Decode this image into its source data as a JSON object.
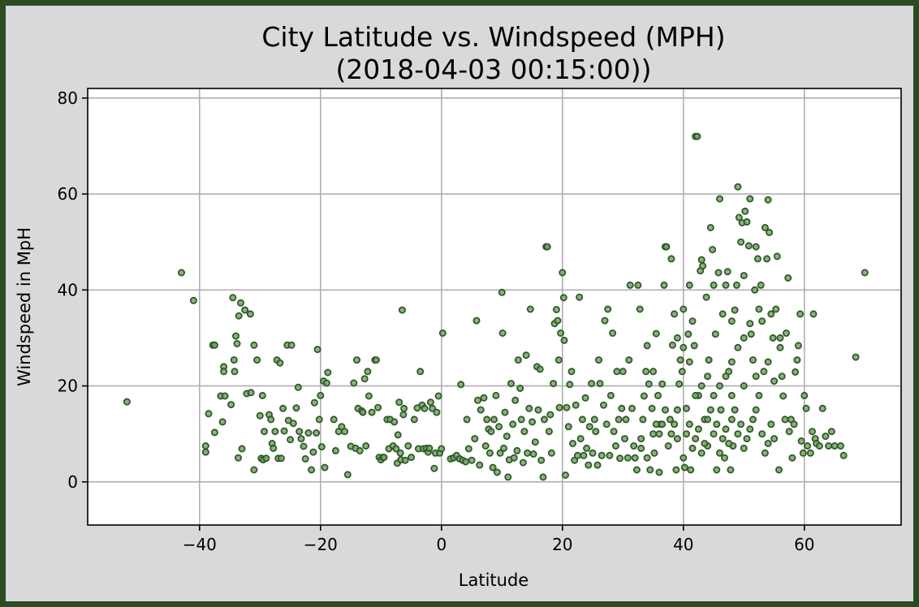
{
  "chart_data": {
    "type": "scatter",
    "title_line1": "City Latitude vs. Windspeed (MPH)",
    "title_line2": "(2018-04-03 00:15:00))",
    "xlabel": "Latitude",
    "ylabel": "Windspeed in MpH",
    "xlim": [
      -58.5,
      76.0
    ],
    "ylim": [
      -9.0,
      82.0
    ],
    "x_ticks": [
      -40,
      -20,
      0,
      20,
      40,
      60
    ],
    "x_tick_labels": [
      "−40",
      "−20",
      "0",
      "20",
      "40",
      "60"
    ],
    "y_ticks": [
      0,
      20,
      40,
      60,
      80
    ],
    "y_tick_labels": [
      "0",
      "20",
      "40",
      "60",
      "80"
    ],
    "grid": true,
    "point_fill": "#7aa36a",
    "point_edge": "#2f5a28",
    "background": "#d9d9d9",
    "border_color": "#2b4b23",
    "points": [
      [
        -52,
        16.7
      ],
      [
        -43,
        43.6
      ],
      [
        -41,
        37.8
      ],
      [
        -39,
        7.5
      ],
      [
        -39,
        6.2
      ],
      [
        -38.5,
        14.2
      ],
      [
        -37.8,
        28.5
      ],
      [
        -37.5,
        28.5
      ],
      [
        -37.5,
        10.3
      ],
      [
        -36.5,
        17.9
      ],
      [
        -36.2,
        12.5
      ],
      [
        -36,
        24
      ],
      [
        -36,
        23
      ],
      [
        -35.8,
        17.9
      ],
      [
        -34.8,
        16.1
      ],
      [
        -34.5,
        38.4
      ],
      [
        -34.3,
        25.4
      ],
      [
        -34.2,
        23
      ],
      [
        -34,
        30.4
      ],
      [
        -33.8,
        28.8
      ],
      [
        -33.6,
        5
      ],
      [
        -33.5,
        34.6
      ],
      [
        -33.2,
        37.3
      ],
      [
        -33,
        6.9
      ],
      [
        -32.5,
        35.8
      ],
      [
        -32.2,
        18.4
      ],
      [
        -31.6,
        35
      ],
      [
        -31.5,
        18.6
      ],
      [
        -31,
        28.5
      ],
      [
        -31,
        2.5
      ],
      [
        -30.5,
        25.4
      ],
      [
        -30,
        13.8
      ],
      [
        -29.8,
        4.9
      ],
      [
        -29.6,
        18
      ],
      [
        -29.5,
        4.6
      ],
      [
        -29.3,
        10.5
      ],
      [
        -29,
        4.9
      ],
      [
        -28.5,
        14
      ],
      [
        -28.2,
        13
      ],
      [
        -28,
        8
      ],
      [
        -27.8,
        7
      ],
      [
        -27.5,
        10.5
      ],
      [
        -27.2,
        25.4
      ],
      [
        -27,
        4.9
      ],
      [
        -26.7,
        24.8
      ],
      [
        -26.5,
        4.9
      ],
      [
        -26.2,
        15.3
      ],
      [
        -26,
        10.6
      ],
      [
        -25.5,
        28.5
      ],
      [
        -25.3,
        12.8
      ],
      [
        -25,
        8.8
      ],
      [
        -24.8,
        28.5
      ],
      [
        -24.5,
        12.2
      ],
      [
        -24,
        15.4
      ],
      [
        -23.7,
        19.7
      ],
      [
        -23.5,
        10.5
      ],
      [
        -23.2,
        9
      ],
      [
        -22.8,
        7.4
      ],
      [
        -22.5,
        4.8
      ],
      [
        -22,
        10.2
      ],
      [
        -21.5,
        2.5
      ],
      [
        -21.2,
        6.2
      ],
      [
        -21,
        16.5
      ],
      [
        -20.7,
        10.2
      ],
      [
        -20.5,
        27.6
      ],
      [
        -20.2,
        13
      ],
      [
        -20,
        18
      ],
      [
        -19.8,
        7.3
      ],
      [
        -19.5,
        21
      ],
      [
        -19.3,
        3
      ],
      [
        -19,
        20.6
      ],
      [
        -18.8,
        22.8
      ],
      [
        -17.8,
        13
      ],
      [
        -17.5,
        6.5
      ],
      [
        -17,
        10.5
      ],
      [
        -16.5,
        11.5
      ],
      [
        -16,
        10.5
      ],
      [
        -15.5,
        1.5
      ],
      [
        -15,
        7.4
      ],
      [
        -14.5,
        20.6
      ],
      [
        -14.2,
        7
      ],
      [
        -14,
        25.4
      ],
      [
        -13.8,
        15.3
      ],
      [
        -13.5,
        6.5
      ],
      [
        -13.2,
        14.8
      ],
      [
        -13,
        14.5
      ],
      [
        -12.7,
        21.5
      ],
      [
        -12.5,
        7.5
      ],
      [
        -12.2,
        23
      ],
      [
        -12,
        17.9
      ],
      [
        -11.5,
        14.5
      ],
      [
        -11,
        25.4
      ],
      [
        -10.8,
        25.4
      ],
      [
        -10.5,
        15.5
      ],
      [
        -10.3,
        5.1
      ],
      [
        -10,
        4.6
      ],
      [
        -9.7,
        5.1
      ],
      [
        -9.5,
        5.1
      ],
      [
        -9,
        13
      ],
      [
        -8.7,
        6.9
      ],
      [
        -8.5,
        13
      ],
      [
        -8,
        7.5
      ],
      [
        -7.8,
        12.5
      ],
      [
        -7.5,
        6.9
      ],
      [
        -7.3,
        3.9
      ],
      [
        -7.2,
        9.8
      ],
      [
        -7,
        16.6
      ],
      [
        -6.8,
        6
      ],
      [
        -6.7,
        4.6
      ],
      [
        -6.5,
        35.8
      ],
      [
        -6.3,
        14
      ],
      [
        -6.2,
        15.3
      ],
      [
        -6,
        4.5
      ],
      [
        -5.5,
        7.5
      ],
      [
        -5,
        5.1
      ],
      [
        -4.5,
        13
      ],
      [
        -4,
        15.4
      ],
      [
        -3.8,
        6.9
      ],
      [
        -3.5,
        23
      ],
      [
        -3.2,
        16
      ],
      [
        -3,
        6.9
      ],
      [
        -2.8,
        15.3
      ],
      [
        -2.5,
        7
      ],
      [
        -2.2,
        6.2
      ],
      [
        -2,
        7
      ],
      [
        -1.8,
        16.6
      ],
      [
        -1.5,
        15.3
      ],
      [
        -1.2,
        2.8
      ],
      [
        -1,
        6
      ],
      [
        -0.8,
        14.5
      ],
      [
        -0.5,
        17.9
      ],
      [
        -0.3,
        6
      ],
      [
        0,
        6.9
      ],
      [
        0.2,
        31
      ],
      [
        1.5,
        4.8
      ],
      [
        2,
        5
      ],
      [
        2.5,
        5.5
      ],
      [
        3,
        4.8
      ],
      [
        3.2,
        20.3
      ],
      [
        3.5,
        4.5
      ],
      [
        4,
        4.2
      ],
      [
        4.2,
        13
      ],
      [
        4.5,
        6.9
      ],
      [
        5,
        4.5
      ],
      [
        5.5,
        9
      ],
      [
        5.8,
        33.6
      ],
      [
        6,
        17
      ],
      [
        6.3,
        3.5
      ],
      [
        6.5,
        15
      ],
      [
        7,
        17.5
      ],
      [
        7.3,
        7.5
      ],
      [
        7.5,
        13
      ],
      [
        7.8,
        11
      ],
      [
        8,
        6
      ],
      [
        8.2,
        10.5
      ],
      [
        8.5,
        3
      ],
      [
        8.7,
        13
      ],
      [
        9,
        18
      ],
      [
        9.2,
        2
      ],
      [
        9.5,
        11.5
      ],
      [
        9.7,
        6
      ],
      [
        10,
        39.5
      ],
      [
        10.1,
        31
      ],
      [
        10.3,
        7
      ],
      [
        10.5,
        14.5
      ],
      [
        10.8,
        9.5
      ],
      [
        11,
        1
      ],
      [
        11.2,
        4.6
      ],
      [
        11.5,
        20.5
      ],
      [
        11.8,
        12
      ],
      [
        12,
        5
      ],
      [
        12.2,
        17
      ],
      [
        12.5,
        6.5
      ],
      [
        12.7,
        25.4
      ],
      [
        13,
        19.5
      ],
      [
        13.2,
        13
      ],
      [
        13.5,
        4
      ],
      [
        13.7,
        10.5
      ],
      [
        14,
        26.4
      ],
      [
        14.2,
        6
      ],
      [
        14.5,
        15.3
      ],
      [
        14.7,
        36
      ],
      [
        15,
        12.5
      ],
      [
        15.2,
        5.8
      ],
      [
        15.5,
        8.3
      ],
      [
        15.8,
        24
      ],
      [
        16,
        15
      ],
      [
        16.3,
        23.5
      ],
      [
        16.5,
        4.5
      ],
      [
        16.8,
        1
      ],
      [
        17,
        13
      ],
      [
        17.3,
        49
      ],
      [
        17.5,
        49
      ],
      [
        17.8,
        10.5
      ],
      [
        18,
        14
      ],
      [
        18.2,
        6
      ],
      [
        18.5,
        20.5
      ],
      [
        18.7,
        33
      ],
      [
        19,
        35.9
      ],
      [
        19.2,
        33.6
      ],
      [
        19.4,
        25.4
      ],
      [
        19.5,
        15.5
      ],
      [
        19.7,
        31
      ],
      [
        20,
        43.6
      ],
      [
        20.2,
        38.4
      ],
      [
        20.3,
        29.5
      ],
      [
        20.5,
        1.4
      ],
      [
        20.7,
        15.5
      ],
      [
        21,
        11.5
      ],
      [
        21.2,
        20.3
      ],
      [
        21.5,
        23
      ],
      [
        21.7,
        8
      ],
      [
        22,
        4.5
      ],
      [
        22.2,
        16
      ],
      [
        22.5,
        5.5
      ],
      [
        22.8,
        38.5
      ],
      [
        23,
        9
      ],
      [
        23.3,
        13
      ],
      [
        23.5,
        5.5
      ],
      [
        23.8,
        17.5
      ],
      [
        24,
        7
      ],
      [
        24.3,
        3.5
      ],
      [
        24.5,
        11.5
      ],
      [
        24.8,
        20.5
      ],
      [
        25,
        6
      ],
      [
        25.3,
        13
      ],
      [
        25.5,
        10.5
      ],
      [
        25.8,
        3.5
      ],
      [
        26,
        25.4
      ],
      [
        26.2,
        20.5
      ],
      [
        26.5,
        5.5
      ],
      [
        26.8,
        16
      ],
      [
        27,
        33.6
      ],
      [
        27.3,
        12
      ],
      [
        27.5,
        36
      ],
      [
        27.8,
        5.5
      ],
      [
        28,
        18
      ],
      [
        28.3,
        31
      ],
      [
        28.5,
        10.5
      ],
      [
        28.8,
        7.5
      ],
      [
        29,
        23
      ],
      [
        29.3,
        13
      ],
      [
        29.5,
        4.9
      ],
      [
        29.8,
        15.3
      ],
      [
        30,
        23
      ],
      [
        30.3,
        9
      ],
      [
        30.5,
        13
      ],
      [
        30.8,
        5
      ],
      [
        31,
        25.4
      ],
      [
        31.2,
        41
      ],
      [
        31.5,
        15.3
      ],
      [
        31.8,
        7.5
      ],
      [
        32,
        5
      ],
      [
        32.3,
        2.5
      ],
      [
        32.5,
        41
      ],
      [
        32.8,
        36
      ],
      [
        33,
        9
      ],
      [
        33.3,
        13
      ],
      [
        33.5,
        17.9
      ],
      [
        33.8,
        23
      ],
      [
        34,
        28.4
      ],
      [
        34.3,
        20.4
      ],
      [
        34.5,
        2.5
      ],
      [
        34.8,
        15.3
      ],
      [
        35,
        23
      ],
      [
        35.2,
        6
      ],
      [
        35.5,
        30.9
      ],
      [
        35.8,
        18
      ],
      [
        36,
        2
      ],
      [
        36.2,
        12
      ],
      [
        36.5,
        20.4
      ],
      [
        36.8,
        41
      ],
      [
        37,
        49
      ],
      [
        37.2,
        49
      ],
      [
        37.5,
        7.5
      ],
      [
        37.8,
        13
      ],
      [
        38,
        46.5
      ],
      [
        38.2,
        28.5
      ],
      [
        38.5,
        35
      ],
      [
        38.8,
        2.5
      ],
      [
        39,
        9
      ],
      [
        39.3,
        20.4
      ],
      [
        39.5,
        25.4
      ],
      [
        39.8,
        23
      ],
      [
        40,
        36
      ],
      [
        40.2,
        3
      ],
      [
        40.5,
        15.3
      ],
      [
        40.8,
        30.8
      ],
      [
        41,
        41
      ],
      [
        41.2,
        2.5
      ],
      [
        41.5,
        33.5
      ],
      [
        41.8,
        28.4
      ],
      [
        42,
        72
      ],
      [
        42.3,
        72
      ],
      [
        42.5,
        18
      ],
      [
        42.8,
        44
      ],
      [
        43,
        46.3
      ],
      [
        43.2,
        45
      ],
      [
        43.5,
        13
      ],
      [
        43.8,
        38.5
      ],
      [
        44,
        7.5
      ],
      [
        44.2,
        25.4
      ],
      [
        44.5,
        53
      ],
      [
        44.8,
        48.4
      ],
      [
        45,
        41
      ],
      [
        45.3,
        30.8
      ],
      [
        45.5,
        2.5
      ],
      [
        45.8,
        43.6
      ],
      [
        46,
        59
      ],
      [
        46.2,
        15
      ],
      [
        46.5,
        35
      ],
      [
        46.8,
        5
      ],
      [
        47,
        41
      ],
      [
        47.3,
        43.8
      ],
      [
        47.5,
        23
      ],
      [
        47.8,
        2.5
      ],
      [
        48,
        33.5
      ],
      [
        48.2,
        7.5
      ],
      [
        48.5,
        35.8
      ],
      [
        48.8,
        41
      ],
      [
        49,
        61.5
      ],
      [
        49.2,
        55.1
      ],
      [
        49.5,
        50
      ],
      [
        49.7,
        54
      ],
      [
        50,
        43
      ],
      [
        50.2,
        56.4
      ],
      [
        50.5,
        54.2
      ],
      [
        50.8,
        49.2
      ],
      [
        51,
        59
      ],
      [
        51.2,
        30.8
      ],
      [
        51.5,
        25.4
      ],
      [
        51.8,
        40
      ],
      [
        52,
        49
      ],
      [
        52.3,
        46.5
      ],
      [
        52.5,
        36
      ],
      [
        52.8,
        41
      ],
      [
        53,
        33.5
      ],
      [
        53.3,
        23
      ],
      [
        53.5,
        53
      ],
      [
        53.8,
        46.5
      ],
      [
        54,
        58.8
      ],
      [
        54.2,
        52
      ],
      [
        54.5,
        35
      ],
      [
        54.8,
        30
      ],
      [
        55,
        21
      ],
      [
        55.3,
        36
      ],
      [
        55.5,
        47
      ],
      [
        55.8,
        2.5
      ],
      [
        56,
        30
      ],
      [
        56.3,
        22
      ],
      [
        56.5,
        17.9
      ],
      [
        56.8,
        13
      ],
      [
        57,
        31
      ],
      [
        57.3,
        42.5
      ],
      [
        57.5,
        10.5
      ],
      [
        57.8,
        13
      ],
      [
        58,
        5
      ],
      [
        58.3,
        12
      ],
      [
        58.5,
        22.9
      ],
      [
        58.8,
        25.4
      ],
      [
        59,
        28.4
      ],
      [
        59.3,
        35
      ],
      [
        59.5,
        8.5
      ],
      [
        59.8,
        6
      ],
      [
        60,
        18
      ],
      [
        60.3,
        15.3
      ],
      [
        60.5,
        7.5
      ],
      [
        61,
        6
      ],
      [
        61.3,
        10.5
      ],
      [
        61.5,
        35
      ],
      [
        61.8,
        9
      ],
      [
        62,
        8
      ],
      [
        62.5,
        7.5
      ],
      [
        63,
        15.3
      ],
      [
        63.5,
        9.5
      ],
      [
        64,
        7.5
      ],
      [
        64.5,
        10.5
      ],
      [
        65,
        7.5
      ],
      [
        66,
        7.5
      ],
      [
        66.5,
        5.5
      ],
      [
        68.5,
        26
      ],
      [
        70,
        43.6
      ],
      [
        40,
        5
      ],
      [
        40.5,
        10
      ],
      [
        41,
        12
      ],
      [
        41.5,
        7
      ],
      [
        42,
        9
      ],
      [
        42.5,
        11
      ],
      [
        43,
        6
      ],
      [
        43.5,
        8
      ],
      [
        44,
        13
      ],
      [
        44.5,
        15
      ],
      [
        45,
        10
      ],
      [
        45.5,
        12
      ],
      [
        46,
        6
      ],
      [
        46.5,
        9
      ],
      [
        47,
        11
      ],
      [
        47.5,
        8
      ],
      [
        48,
        13
      ],
      [
        48.5,
        15
      ],
      [
        49,
        10
      ],
      [
        49.5,
        12
      ],
      [
        50,
        7
      ],
      [
        50.5,
        9
      ],
      [
        51,
        11
      ],
      [
        51.5,
        13
      ],
      [
        52,
        15
      ],
      [
        52.5,
        18
      ],
      [
        53,
        10
      ],
      [
        53.5,
        6
      ],
      [
        54,
        8
      ],
      [
        54.5,
        12
      ],
      [
        55,
        9
      ],
      [
        38,
        10
      ],
      [
        38.5,
        12
      ],
      [
        39,
        15
      ],
      [
        36,
        10
      ],
      [
        36.5,
        12
      ],
      [
        37,
        15
      ],
      [
        35,
        10
      ],
      [
        35.5,
        12
      ],
      [
        34,
        5
      ],
      [
        33,
        7
      ],
      [
        45,
        18
      ],
      [
        46,
        20
      ],
      [
        47,
        22
      ],
      [
        48,
        25
      ],
      [
        49,
        28
      ],
      [
        50,
        30
      ],
      [
        51,
        33
      ],
      [
        42,
        18
      ],
      [
        43,
        20
      ],
      [
        44,
        22
      ],
      [
        41,
        25
      ],
      [
        40,
        28
      ],
      [
        39,
        30
      ],
      [
        48,
        18
      ],
      [
        50,
        20
      ],
      [
        52,
        22
      ],
      [
        54,
        25
      ],
      [
        56,
        28
      ]
    ]
  }
}
